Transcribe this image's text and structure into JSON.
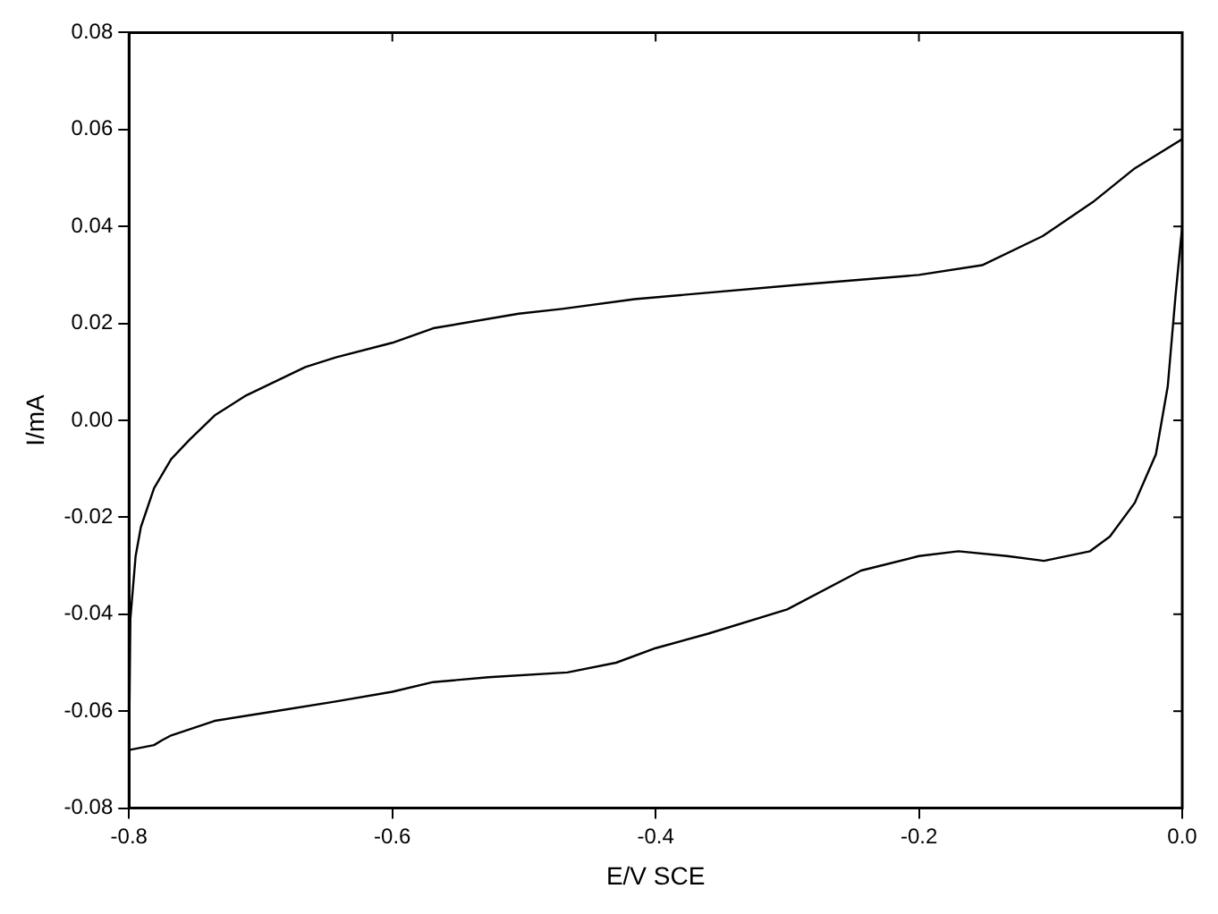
{
  "chart_data": {
    "type": "line",
    "xlabel": "E/V SCE",
    "ylabel": "I/mA",
    "xlim": [
      -0.8,
      0.0
    ],
    "xticks": [
      {
        "value": -0.8,
        "label": "-0.8"
      },
      {
        "value": -0.6,
        "label": "-0.6"
      },
      {
        "value": -0.4,
        "label": "-0.4"
      },
      {
        "value": -0.2,
        "label": "-0.2"
      },
      {
        "value": 0,
        "label": "0.0"
      }
    ],
    "ylim": [
      -0.08,
      0.08
    ],
    "yticks": [
      {
        "value": -0.08,
        "label": "-0.08"
      },
      {
        "value": -0.06,
        "label": "-0.06"
      },
      {
        "value": -0.04,
        "label": "-0.04"
      },
      {
        "value": -0.02,
        "label": "-0.02"
      },
      {
        "value": 0,
        "label": "0.00"
      },
      {
        "value": 0.02,
        "label": "0.02"
      },
      {
        "value": 0.04,
        "label": "0.04"
      },
      {
        "value": 0.06,
        "label": "0.06"
      },
      {
        "value": 0.08,
        "label": "0.08"
      }
    ],
    "grid": false,
    "legend": false,
    "marker": "none",
    "line_style": "solid",
    "series": [
      {
        "color": "#000000",
        "x": [
          0.0,
          -0.036,
          -0.068,
          -0.106,
          -0.152,
          -0.2,
          -0.29,
          -0.416,
          -0.471,
          -0.504,
          -0.569,
          -0.6,
          -0.643,
          -0.666,
          -0.689,
          -0.712,
          -0.735,
          -0.754,
          -0.768,
          -0.781,
          -0.791,
          -0.795,
          -0.799,
          -0.8,
          -0.781,
          -0.775,
          -0.768,
          -0.735,
          -0.689,
          -0.643,
          -0.6,
          -0.569,
          -0.527,
          -0.467,
          -0.43,
          -0.4,
          -0.36,
          -0.3,
          -0.244,
          -0.2,
          -0.17,
          -0.133,
          -0.105,
          -0.07,
          -0.055,
          -0.036,
          -0.02,
          -0.011,
          -0.005,
          0.0
        ],
        "values": [
          0.058,
          0.052,
          0.045,
          0.038,
          0.032,
          0.03,
          0.028,
          0.025,
          0.023,
          0.022,
          0.019,
          0.016,
          0.013,
          0.011,
          0.008,
          0.005,
          0.001,
          -0.004,
          -0.008,
          -0.014,
          -0.022,
          -0.028,
          -0.041,
          -0.068,
          -0.067,
          -0.066,
          -0.065,
          -0.062,
          -0.06,
          -0.058,
          -0.056,
          -0.054,
          -0.053,
          -0.052,
          -0.05,
          -0.047,
          -0.044,
          -0.039,
          -0.031,
          -0.028,
          -0.027,
          -0.028,
          -0.029,
          -0.027,
          -0.024,
          -0.017,
          -0.007,
          0.007,
          0.026,
          0.04
        ]
      }
    ]
  }
}
